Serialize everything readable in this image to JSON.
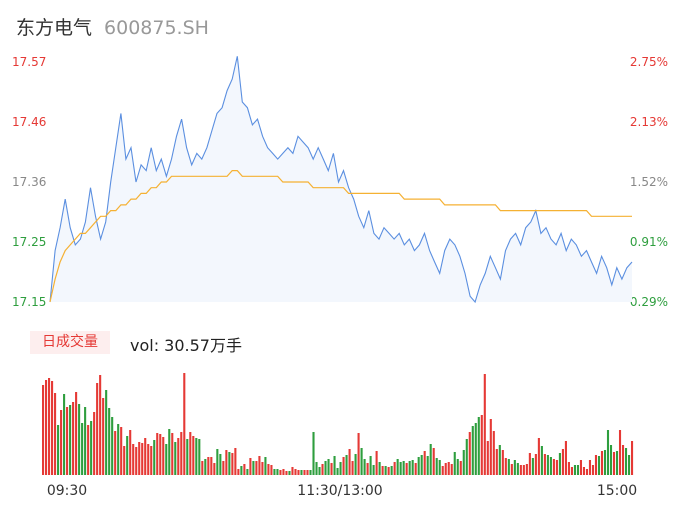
{
  "header": {
    "name": "东方电气",
    "code": "600875.SH"
  },
  "volume_panel": {
    "badge": "日成交量",
    "vol_text": "vol: 30.57万手"
  },
  "colors": {
    "price_line": "#5b8fe0",
    "avg_line": "#f5b133",
    "up": "#e53935",
    "down": "#2e9e3e",
    "axis_mid": "#888888"
  },
  "chart_data": [
    {
      "type": "line",
      "title": "",
      "y_left_ticks": [
        "17.57",
        "17.46",
        "17.36",
        "17.25",
        "17.15"
      ],
      "y_right_ticks": [
        "2.75%",
        "2.13%",
        "1.52%",
        "0.91%",
        "0.29%"
      ],
      "ylim": [
        17.15,
        17.57
      ],
      "x_ticks": [
        "09:30",
        "11:30/13:00",
        "15:00"
      ],
      "series": [
        {
          "role": "price",
          "values": [
            17.15,
            17.24,
            17.28,
            17.33,
            17.28,
            17.25,
            17.26,
            17.29,
            17.35,
            17.3,
            17.26,
            17.29,
            17.36,
            17.42,
            17.48,
            17.4,
            17.42,
            17.36,
            17.39,
            17.38,
            17.42,
            17.38,
            17.4,
            17.37,
            17.4,
            17.44,
            17.47,
            17.42,
            17.39,
            17.41,
            17.4,
            17.42,
            17.45,
            17.48,
            17.49,
            17.52,
            17.54,
            17.58,
            17.5,
            17.49,
            17.46,
            17.47,
            17.44,
            17.42,
            17.41,
            17.4,
            17.41,
            17.42,
            17.41,
            17.44,
            17.43,
            17.42,
            17.4,
            17.42,
            17.4,
            17.38,
            17.41,
            17.36,
            17.38,
            17.35,
            17.33,
            17.3,
            17.28,
            17.31,
            17.27,
            17.26,
            17.28,
            17.27,
            17.26,
            17.27,
            17.25,
            17.26,
            17.24,
            17.25,
            17.27,
            17.24,
            17.22,
            17.2,
            17.24,
            17.26,
            17.25,
            17.23,
            17.2,
            17.16,
            17.15,
            17.18,
            17.2,
            17.23,
            17.21,
            17.19,
            17.24,
            17.26,
            17.27,
            17.25,
            17.28,
            17.29,
            17.31,
            17.27,
            17.28,
            17.26,
            17.25,
            17.27,
            17.24,
            17.26,
            17.25,
            17.23,
            17.24,
            17.22,
            17.2,
            17.23,
            17.21,
            17.18,
            17.21,
            17.19,
            17.21,
            17.22
          ]
        },
        {
          "role": "average",
          "values": [
            17.15,
            17.19,
            17.22,
            17.24,
            17.25,
            17.26,
            17.27,
            17.27,
            17.28,
            17.29,
            17.3,
            17.3,
            17.31,
            17.31,
            17.32,
            17.32,
            17.33,
            17.33,
            17.34,
            17.34,
            17.35,
            17.35,
            17.36,
            17.36,
            17.37,
            17.37,
            17.37,
            17.37,
            17.37,
            17.37,
            17.37,
            17.37,
            17.37,
            17.37,
            17.37,
            17.37,
            17.38,
            17.38,
            17.37,
            17.37,
            17.37,
            17.37,
            17.37,
            17.37,
            17.37,
            17.37,
            17.36,
            17.36,
            17.36,
            17.36,
            17.36,
            17.36,
            17.35,
            17.35,
            17.35,
            17.35,
            17.35,
            17.35,
            17.35,
            17.34,
            17.34,
            17.34,
            17.34,
            17.34,
            17.34,
            17.34,
            17.34,
            17.34,
            17.34,
            17.34,
            17.33,
            17.33,
            17.33,
            17.33,
            17.33,
            17.33,
            17.33,
            17.33,
            17.32,
            17.32,
            17.32,
            17.32,
            17.32,
            17.32,
            17.32,
            17.32,
            17.32,
            17.32,
            17.32,
            17.31,
            17.31,
            17.31,
            17.31,
            17.31,
            17.31,
            17.31,
            17.31,
            17.31,
            17.31,
            17.31,
            17.31,
            17.31,
            17.31,
            17.31,
            17.31,
            17.31,
            17.31,
            17.3,
            17.3,
            17.3,
            17.3,
            17.3,
            17.3,
            17.3,
            17.3,
            17.3
          ]
        }
      ]
    },
    {
      "type": "bar",
      "title": "",
      "values": [
        9,
        9.5,
        9.7,
        9.4,
        8.2,
        5,
        6.5,
        8.1,
        6.8,
        7,
        7.3,
        8.3,
        7.1,
        5.2,
        6.8,
        5,
        5.4,
        6.3,
        9.2,
        10,
        7.7,
        8.5,
        6.7,
        5.8,
        4.4,
        5.1,
        4.8,
        2.9,
        3.9,
        4.5,
        3.1,
        2.8,
        3.3,
        3.2,
        3.7,
        3.1,
        2.9,
        3.5,
        4.2,
        4.1,
        3.8,
        3.1,
        4.6,
        4.2,
        3.3,
        3.7,
        4.3,
        10.2,
        3.6,
        4.3,
        3.9,
        3.7,
        3.6,
        1.4,
        1.6,
        1.8,
        1.8,
        1.2,
        2.6,
        2.1,
        1.4,
        2.5,
        2.3,
        2.2,
        2.7,
        0.6,
        0.9,
        1.1,
        0.6,
        1.7,
        1.4,
        1.4,
        1.9,
        1.3,
        1.8,
        1.1,
        1,
        0.6,
        0.6,
        0.5,
        0.6,
        0.4,
        0.4,
        0.8,
        0.6,
        0.5,
        0.5,
        0.5,
        0.5,
        0.5,
        4.3,
        1.3,
        0.8,
        1.1,
        1.4,
        1.6,
        1.2,
        1.9,
        0.7,
        1.3,
        1.8,
        2,
        2.6,
        1.4,
        2.1,
        4.2,
        2.7,
        1.6,
        1.2,
        1.9,
        1,
        2.4,
        1.3,
        0.9,
        0.9,
        0.8,
        0.9,
        1.3,
        1.6,
        1.3,
        1.4,
        1.2,
        1.4,
        1.5,
        1.2,
        1.8,
        2,
        2.4,
        1.9,
        3.1,
        2.7,
        1.7,
        1.5,
        0.9,
        1.2,
        1.3,
        1.1,
        2.3,
        1.6,
        1.4,
        2.5,
        3.6,
        4.3,
        4.9,
        5.2,
        5.8,
        6,
        10.1,
        3.4,
        5.6,
        4.4,
        2.6,
        3,
        2.5,
        1.7,
        1.6,
        1.1,
        1.5,
        1.2,
        1,
        1,
        1.1,
        2.2,
        1.7,
        2.1,
        3.7,
        2.9,
        2.1,
        2,
        1.8,
        1.6,
        1.5,
        2.2,
        2.6,
        3.4,
        1.3,
        0.8,
        1,
        1,
        1.5,
        0.8,
        0.6,
        1.5,
        1,
        2,
        1.9,
        2.4,
        2.5,
        4.5,
        3,
        2.3,
        2.4,
        4.5,
        3,
        2.7,
        2,
        3.4
      ],
      "colors": [
        "up",
        "up",
        "up",
        "up",
        "up",
        "down",
        "up",
        "down",
        "up",
        "down",
        "up",
        "up",
        "down",
        "down",
        "down",
        "up",
        "down",
        "up",
        "up",
        "up",
        "up",
        "down",
        "down",
        "down",
        "up",
        "down",
        "up",
        "up",
        "down",
        "up",
        "up",
        "up",
        "up",
        "up",
        "up",
        "up",
        "up",
        "down",
        "up",
        "up",
        "up",
        "down",
        "down",
        "up",
        "down",
        "up",
        "up",
        "up",
        "down",
        "up",
        "up",
        "down",
        "down",
        "up",
        "down",
        "up",
        "up",
        "up",
        "down",
        "down",
        "up",
        "up",
        "down",
        "up",
        "up",
        "up",
        "down",
        "up",
        "down",
        "up",
        "down",
        "up",
        "up",
        "up",
        "down",
        "up",
        "up",
        "down",
        "down",
        "up",
        "up",
        "up",
        "down",
        "up",
        "up",
        "up",
        "down",
        "up",
        "up",
        "down",
        "down",
        "down",
        "down",
        "up",
        "down",
        "down",
        "up",
        "down",
        "down",
        "down",
        "up",
        "down",
        "up",
        "up",
        "down",
        "up",
        "down",
        "down",
        "up",
        "down",
        "down",
        "up",
        "down",
        "up",
        "down",
        "up",
        "down",
        "up",
        "down",
        "down",
        "down",
        "up",
        "down",
        "down",
        "up",
        "down",
        "down",
        "up",
        "down",
        "down",
        "up",
        "down",
        "down",
        "up",
        "up",
        "up",
        "up",
        "down",
        "down",
        "up",
        "down",
        "down",
        "up",
        "down",
        "down",
        "down",
        "up",
        "up",
        "up",
        "up",
        "up",
        "up",
        "down",
        "up",
        "up",
        "down",
        "up",
        "down",
        "down",
        "up",
        "up",
        "up",
        "up",
        "down",
        "up",
        "up",
        "down",
        "up",
        "down",
        "down",
        "up",
        "up",
        "down",
        "up",
        "up",
        "up",
        "up",
        "down",
        "down",
        "up",
        "up",
        "up",
        "up",
        "up",
        "up",
        "down",
        "up",
        "down",
        "down",
        "down",
        "up",
        "down",
        "up",
        "up",
        "down",
        "down",
        "up",
        "up",
        "up",
        "up"
      ]
    }
  ]
}
